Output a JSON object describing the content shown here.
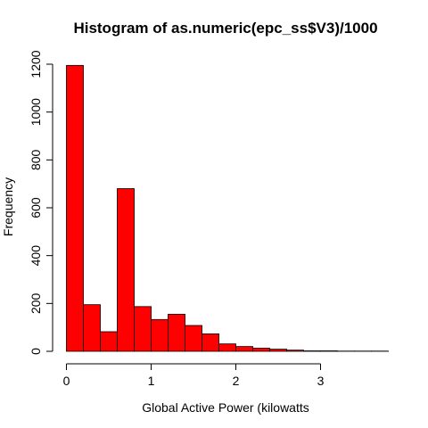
{
  "chart_data": {
    "type": "bar",
    "title": "Histogram of as.numeric(epc_ss$V3)/1000",
    "xlabel": "Global Active Power (kilowatts",
    "ylabel": "Frequency",
    "bar_color": "#ff0000",
    "bin_width": 0.2,
    "bins": [
      {
        "start": 0.0,
        "end": 0.2,
        "count": 1195
      },
      {
        "start": 0.2,
        "end": 0.4,
        "count": 195
      },
      {
        "start": 0.4,
        "end": 0.6,
        "count": 82
      },
      {
        "start": 0.6,
        "end": 0.8,
        "count": 680
      },
      {
        "start": 0.8,
        "end": 1.0,
        "count": 187
      },
      {
        "start": 1.0,
        "end": 1.2,
        "count": 133
      },
      {
        "start": 1.2,
        "end": 1.4,
        "count": 155
      },
      {
        "start": 1.4,
        "end": 1.6,
        "count": 108
      },
      {
        "start": 1.6,
        "end": 1.8,
        "count": 73
      },
      {
        "start": 1.8,
        "end": 2.0,
        "count": 31
      },
      {
        "start": 2.0,
        "end": 2.2,
        "count": 20
      },
      {
        "start": 2.2,
        "end": 2.4,
        "count": 13
      },
      {
        "start": 2.4,
        "end": 2.6,
        "count": 9
      },
      {
        "start": 2.6,
        "end": 2.8,
        "count": 5
      },
      {
        "start": 2.8,
        "end": 3.0,
        "count": 2
      },
      {
        "start": 3.0,
        "end": 3.2,
        "count": 2
      },
      {
        "start": 3.2,
        "end": 3.4,
        "count": 1
      },
      {
        "start": 3.4,
        "end": 3.6,
        "count": 1
      },
      {
        "start": 3.6,
        "end": 3.8,
        "count": 1
      }
    ],
    "xlim": [
      0,
      3.8
    ],
    "ylim": [
      0,
      1200
    ],
    "x_ticks": [
      0,
      1,
      2,
      3
    ],
    "x_tick_labels": [
      "0",
      "1",
      "2",
      "3"
    ],
    "y_ticks": [
      0,
      200,
      400,
      600,
      800,
      1000,
      1200
    ],
    "y_tick_labels": [
      "0",
      "200",
      "400",
      "600",
      "800",
      "1000",
      "1200"
    ],
    "grid": false,
    "legend": "none"
  }
}
